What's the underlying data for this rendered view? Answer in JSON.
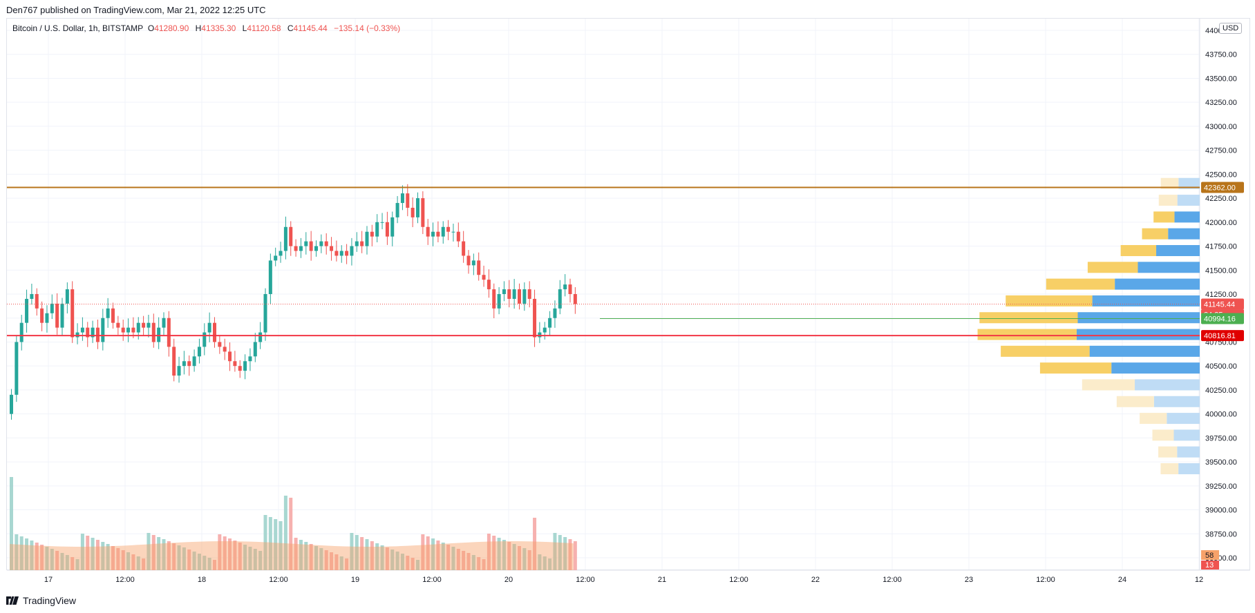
{
  "header": {
    "published": "Den767 published on TradingView.com, Mar 21, 2022 12:25 UTC"
  },
  "legend": {
    "symbol": "Bitcoin / U.S. Dollar, 1h, BITSTAMP",
    "o_label": "O",
    "o": "41280.90",
    "h_label": "H",
    "h": "41335.30",
    "l_label": "L",
    "l": "41120.58",
    "c_label": "C",
    "c": "41145.44",
    "change": "−135.14 (−0.33%)"
  },
  "currency_badge": "USD",
  "footer": {
    "brand": "TradingView"
  },
  "colors": {
    "up": "#26a69a",
    "down": "#ef5350",
    "resistance": "#b8741a",
    "support": "#f23645",
    "grid": "#f0f3fa"
  },
  "chart_data": {
    "type": "candlestick",
    "y_axis_labels": [
      "44000.00",
      "43750.00",
      "43500.00",
      "43250.00",
      "43000.00",
      "42750.00",
      "42500.00",
      "42250.00",
      "42000.00",
      "41750.00",
      "41500.00",
      "41250.00",
      "41000.00",
      "40750.00",
      "40500.00",
      "40250.00",
      "40000.00",
      "39750.00",
      "39500.00",
      "39250.00",
      "39000.00",
      "38750.00",
      "38500.00"
    ],
    "x_axis_labels": [
      "17",
      "12:00",
      "18",
      "12:00",
      "19",
      "12:00",
      "20",
      "12:00",
      "21",
      "12:00",
      "22",
      "12:00",
      "23",
      "12:00",
      "24",
      "12"
    ],
    "price_markers": {
      "resistance": "42362.00",
      "last_price": "41145.44",
      "countdown": "34:35",
      "green_level": "40994.16",
      "support": "40816.81"
    },
    "volume_markers": {
      "volume_ma": "58",
      "last_volume": "13"
    },
    "horizontal_levels": [
      {
        "name": "resistance",
        "value": 42362.0
      },
      {
        "name": "support",
        "value": 40816.81
      },
      {
        "name": "green-level",
        "value": 40994.16
      }
    ],
    "candles_close": [
      40200,
      40750,
      40950,
      41200,
      41250,
      41100,
      40950,
      41050,
      41150,
      40900,
      41150,
      41300,
      40800,
      40850,
      40900,
      40800,
      40900,
      40750,
      41000,
      41100,
      40950,
      40900,
      40850,
      40900,
      40850,
      40950,
      40900,
      40950,
      40750,
      40900,
      41000,
      40700,
      40400,
      40500,
      40550,
      40500,
      40600,
      40700,
      40850,
      40950,
      40750,
      40700,
      40650,
      40550,
      40500,
      40450,
      40550,
      40600,
      40750,
      40850,
      41250,
      41600,
      41650,
      41700,
      41950,
      41750,
      41700,
      41750,
      41800,
      41700,
      41750,
      41800,
      41750,
      41700,
      41650,
      41700,
      41650,
      41750,
      41800,
      41750,
      41900,
      41850,
      42000,
      42000,
      41850,
      42050,
      42200,
      42300,
      42150,
      42050,
      42250,
      41950,
      41850,
      41900,
      41850,
      41950,
      41900,
      41900,
      41800,
      41650,
      41550,
      41600,
      41450,
      41400,
      41300,
      41100,
      41250,
      41300,
      41200,
      41300,
      41150,
      41300,
      41200,
      40800,
      40850,
      40900,
      41000,
      41100,
      41300,
      41350,
      41250,
      41145.44
    ],
    "volume_profile_note": "visible range volume profile on right side"
  }
}
